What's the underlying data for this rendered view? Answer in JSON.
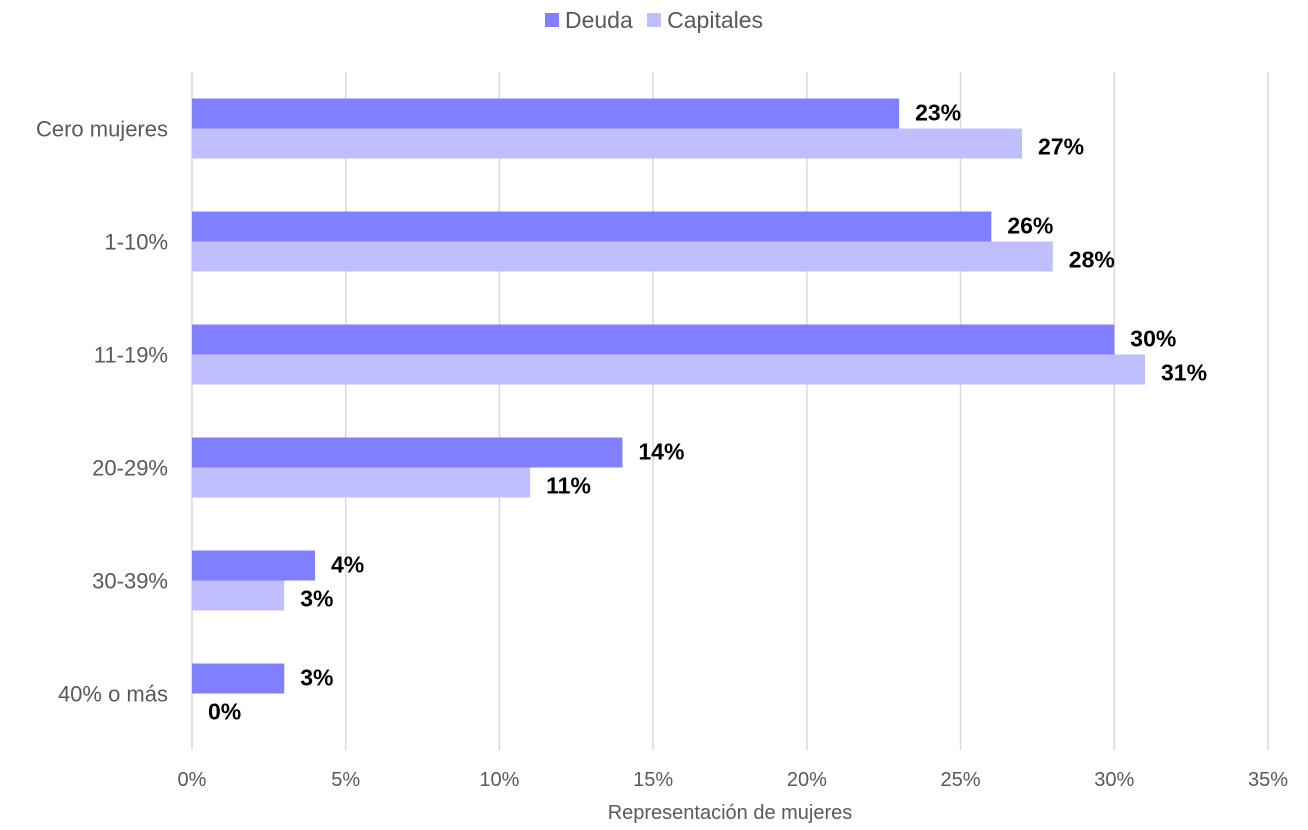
{
  "chart_data": {
    "type": "bar",
    "orientation": "horizontal",
    "categories": [
      "Cero mujeres",
      "1-10%",
      "11-19%",
      "20-29%",
      "30-39%",
      "40% o más"
    ],
    "series": [
      {
        "name": "Deuda",
        "color": "#8080FF",
        "values": [
          23,
          26,
          30,
          14,
          4,
          3
        ],
        "labels": [
          "23%",
          "26%",
          "30%",
          "14%",
          "4%",
          "3%"
        ]
      },
      {
        "name": "Capitales",
        "color": "#BFBFFF",
        "values": [
          27,
          28,
          31,
          11,
          3,
          0
        ],
        "labels": [
          "27%",
          "28%",
          "31%",
          "11%",
          "3%",
          "0%"
        ]
      }
    ],
    "xlim": [
      0,
      35
    ],
    "xticks": [
      "0%",
      "5%",
      "10%",
      "15%",
      "20%",
      "25%",
      "30%",
      "35%"
    ],
    "xlabel": "Representación de mujeres",
    "grid": "vertical",
    "legend_position": "top-center"
  }
}
